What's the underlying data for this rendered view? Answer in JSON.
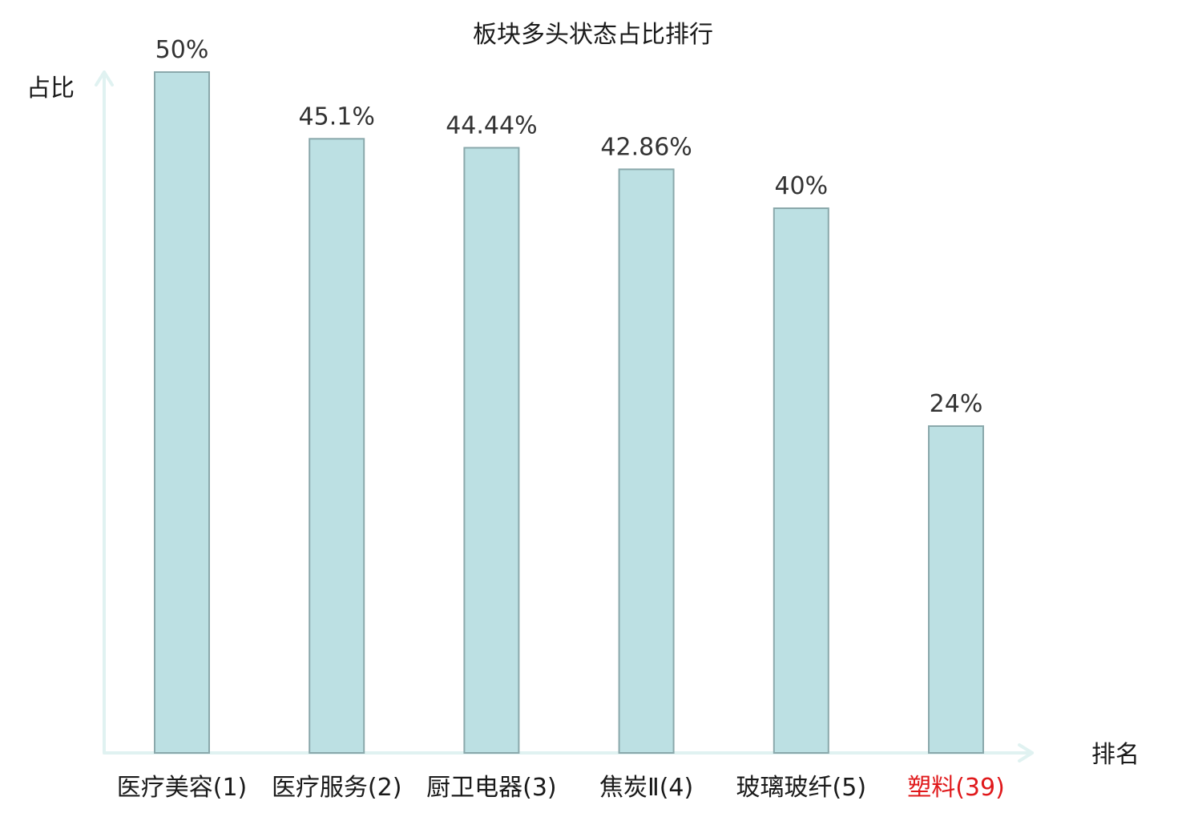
{
  "chart_data": {
    "type": "bar",
    "title": "板块多头状态占比排行",
    "xlabel": "排名",
    "ylabel": "占比",
    "categories": [
      "医疗美容(1)",
      "医疗服务(2)",
      "厨卫电器(3)",
      "焦炭Ⅱ(4)",
      "玻璃玻纤(5)",
      "塑料(39)"
    ],
    "values": [
      50,
      45.1,
      44.44,
      42.86,
      40,
      24
    ],
    "value_labels": [
      "50%",
      "45.1%",
      "44.44%",
      "42.86%",
      "40%",
      "24%"
    ],
    "ylim": [
      0,
      50
    ],
    "grid": false,
    "legend": "none",
    "highlight_index": 5
  },
  "colors": {
    "bar_fill": "#bce0e3",
    "bar_stroke": "#8aa8ab",
    "axis": "#e0f2f1",
    "text": "#1a1a1a",
    "value_text": "#333333",
    "highlight": "#e0191b"
  }
}
